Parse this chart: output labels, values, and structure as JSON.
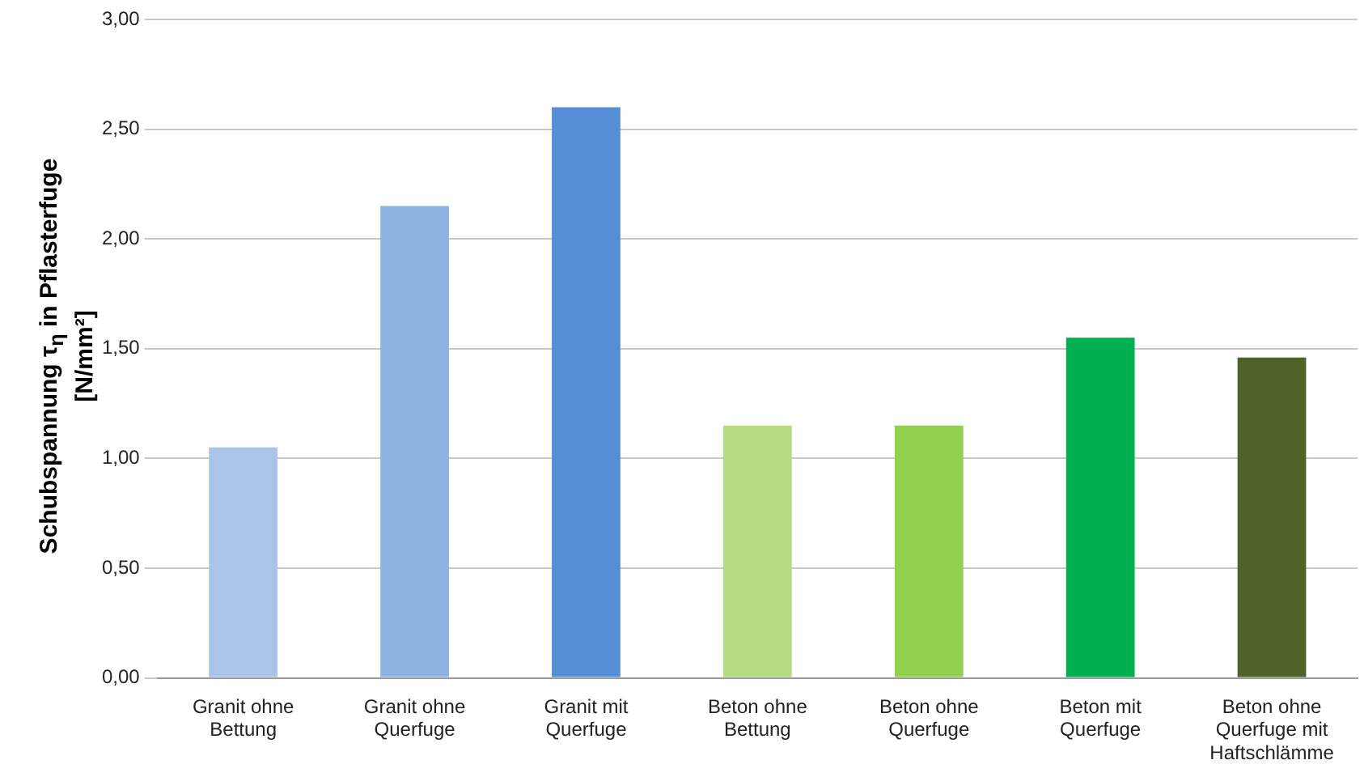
{
  "chart_data": {
    "type": "bar",
    "ylabel": "Schubspannung τ$_{η}$ in Pflasterfuge [N/mm²]",
    "categories": [
      "Granit ohne Bettung",
      "Granit ohne Querfuge",
      "Granit mit Querfuge",
      "Beton ohne Bettung",
      "Beton ohne Querfuge",
      "Beton mit Querfuge",
      "Beton ohne Querfuge mit Haftschlämme"
    ],
    "values": [
      1.05,
      2.15,
      2.6,
      1.15,
      1.15,
      1.55,
      1.46
    ],
    "colors": [
      "#a9c4e8",
      "#8db3e2",
      "#558ed5",
      "#b6dc82",
      "#92d050",
      "#00b050",
      "#4f6228"
    ],
    "ylim": [
      0,
      3
    ],
    "yticks": [
      {
        "value": 0,
        "label": "0,00"
      },
      {
        "value": 0.5,
        "label": "0,50"
      },
      {
        "value": 1,
        "label": "1,00"
      },
      {
        "value": 1.5,
        "label": "1,50"
      },
      {
        "value": 2,
        "label": "2,00"
      },
      {
        "value": 2.5,
        "label": "2,50"
      },
      {
        "value": 3,
        "label": "3,00"
      }
    ],
    "grid": "y",
    "legend": false
  }
}
